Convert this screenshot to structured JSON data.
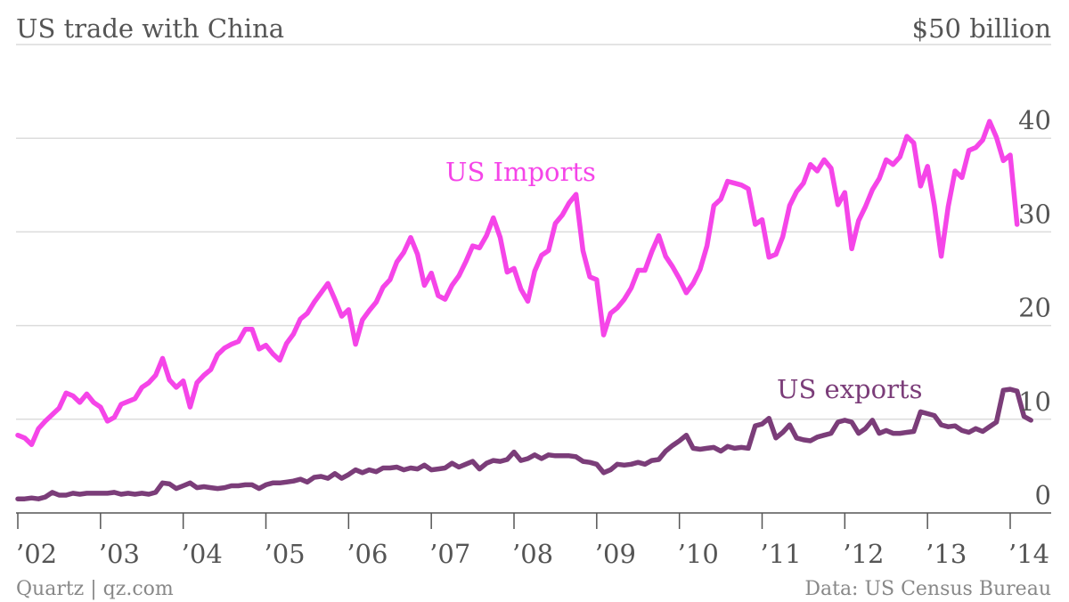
{
  "chart_data": {
    "type": "line",
    "title": "US trade with China",
    "unit_label": "$50 billion",
    "ylim": [
      0,
      50
    ],
    "yticks": [
      0,
      10,
      20,
      30,
      40
    ],
    "ytick_labels": [
      "0",
      "10",
      "20",
      "30",
      "40"
    ],
    "grid": true,
    "x_start": 2002.0,
    "x_step_months": 1,
    "xticks": [
      2002,
      2003,
      2004,
      2005,
      2006,
      2007,
      2008,
      2009,
      2010,
      2011,
      2012,
      2013,
      2014
    ],
    "xtick_labels": [
      "’02",
      "’03",
      "’04",
      "’05",
      "’06",
      "’07",
      "’08",
      "’09",
      "’10",
      "’11",
      "’12",
      "’13",
      "’14"
    ],
    "colors": {
      "imports": "#f545e8",
      "exports": "#7b3d79"
    },
    "series": [
      {
        "name": "US Imports",
        "color": "#f545e8",
        "values": [
          8.3,
          8.0,
          7.3,
          9.0,
          9.8,
          10.5,
          11.2,
          12.8,
          12.5,
          11.8,
          12.7,
          11.8,
          11.3,
          9.8,
          10.2,
          11.6,
          11.9,
          12.2,
          13.4,
          13.9,
          14.7,
          16.5,
          14.2,
          13.4,
          14.1,
          11.3,
          13.9,
          14.7,
          15.3,
          16.9,
          17.6,
          18.0,
          18.3,
          19.6,
          19.6,
          17.5,
          17.9,
          17.0,
          16.3,
          18.1,
          19.1,
          20.7,
          21.3,
          22.5,
          23.5,
          24.5,
          22.8,
          21.0,
          21.7,
          18.0,
          20.6,
          21.6,
          22.5,
          24.1,
          24.9,
          26.8,
          27.8,
          29.4,
          27.6,
          24.3,
          25.6,
          23.2,
          22.8,
          24.3,
          25.3,
          26.8,
          28.5,
          28.3,
          29.6,
          31.5,
          29.4,
          25.7,
          26.1,
          23.9,
          22.6,
          25.8,
          27.5,
          28.0,
          30.9,
          31.8,
          33.1,
          34.0,
          28.0,
          25.2,
          24.9,
          19.0,
          21.3,
          21.9,
          22.8,
          24.0,
          25.9,
          25.9,
          27.9,
          29.6,
          27.4,
          26.3,
          25.0,
          23.5,
          24.5,
          26.0,
          28.5,
          32.8,
          33.5,
          35.4,
          35.2,
          35.0,
          34.6,
          30.8,
          31.3,
          27.3,
          27.6,
          29.5,
          32.8,
          34.3,
          35.2,
          37.2,
          36.5,
          37.7,
          36.8,
          32.9,
          34.2,
          28.2,
          31.2,
          32.7,
          34.5,
          35.7,
          37.7,
          37.2,
          38.0,
          40.2,
          39.5,
          34.9,
          37.0,
          32.8,
          27.4,
          32.7,
          36.5,
          35.8,
          38.7,
          39.0,
          39.8,
          41.8,
          40.1,
          37.6,
          38.2,
          30.8
        ]
      },
      {
        "name": "US exports",
        "color": "#7b3d79",
        "values": [
          1.5,
          1.5,
          1.6,
          1.5,
          1.7,
          2.2,
          1.9,
          1.9,
          2.1,
          2.0,
          2.1,
          2.1,
          2.1,
          2.1,
          2.2,
          2.0,
          2.1,
          2.0,
          2.1,
          2.0,
          2.2,
          3.2,
          3.1,
          2.6,
          2.9,
          3.2,
          2.7,
          2.8,
          2.7,
          2.6,
          2.7,
          2.9,
          2.9,
          3.0,
          3.0,
          2.6,
          3.0,
          3.2,
          3.2,
          3.3,
          3.4,
          3.6,
          3.3,
          3.8,
          3.9,
          3.7,
          4.2,
          3.7,
          4.1,
          4.6,
          4.3,
          4.6,
          4.4,
          4.8,
          4.8,
          4.9,
          4.6,
          4.8,
          4.7,
          5.1,
          4.6,
          4.7,
          4.8,
          5.3,
          4.9,
          5.2,
          5.5,
          4.7,
          5.3,
          5.6,
          5.5,
          5.7,
          6.5,
          5.6,
          5.8,
          6.2,
          5.8,
          6.2,
          6.1,
          6.1,
          6.1,
          6.0,
          5.5,
          5.4,
          5.2,
          4.3,
          4.6,
          5.2,
          5.1,
          5.2,
          5.4,
          5.2,
          5.6,
          5.7,
          6.6,
          7.2,
          7.7,
          8.3,
          6.9,
          6.8,
          6.9,
          7.0,
          6.6,
          7.1,
          6.9,
          7.0,
          6.9,
          9.3,
          9.5,
          10.1,
          8.0,
          8.6,
          9.4,
          8.0,
          7.8,
          7.7,
          8.1,
          8.3,
          8.5,
          9.7,
          9.9,
          9.7,
          8.5,
          9.0,
          9.9,
          8.5,
          8.8,
          8.5,
          8.5,
          8.6,
          8.7,
          10.8,
          10.6,
          10.4,
          9.4,
          9.2,
          9.3,
          8.8,
          8.6,
          9.0,
          8.7,
          9.2,
          9.7,
          13.1,
          13.2,
          13.0,
          10.3,
          9.9
        ]
      }
    ],
    "annotations": [
      {
        "text": "US Imports",
        "series": "US Imports"
      },
      {
        "text": "US exports",
        "series": "US exports"
      }
    ]
  },
  "footer": {
    "source_left": "Quartz | qz.com",
    "source_right": "Data: US Census Bureau"
  }
}
